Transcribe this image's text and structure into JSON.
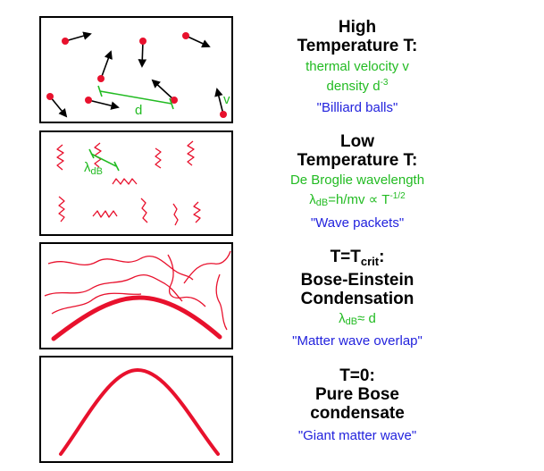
{
  "panels": [
    {
      "title_line1": "High",
      "title_line2": "Temperature T:",
      "green_line1": "thermal velocity v",
      "green_line2_main": "density d",
      "green_line2_sup": "-3",
      "blue_text": "\"Billiard balls\"",
      "label_d": "d",
      "label_v": "v"
    },
    {
      "title_line1": "Low",
      "title_line2": "Temperature T:",
      "green_line1": "De Broglie wavelength",
      "green_line2_lambda": "λ",
      "green_line2_sub": "dB",
      "green_line2_mid": "=h/mv ∝ T",
      "green_line2_sup": "-1/2",
      "blue_text": "\"Wave packets\"",
      "label_lambda": "λ",
      "label_lambda_sub": "dB"
    },
    {
      "title_line1_main": "T=T",
      "title_line1_sub": "crit",
      "title_line1_end": ":",
      "title_line2": "Bose-Einstein",
      "title_line3": "Condensation",
      "green_lambda": "λ",
      "green_sub": "dB",
      "green_end": "≈ d",
      "blue_text": "\"Matter wave overlap\""
    },
    {
      "title_line1": "T=0:",
      "title_line2": "Pure Bose",
      "title_line3": "condensate",
      "blue_text": "\"Giant matter wave\""
    }
  ],
  "colors": {
    "particle": "#e8112d",
    "wave": "#e8112d",
    "label": "#22bb22",
    "quote": "#2222dd"
  }
}
